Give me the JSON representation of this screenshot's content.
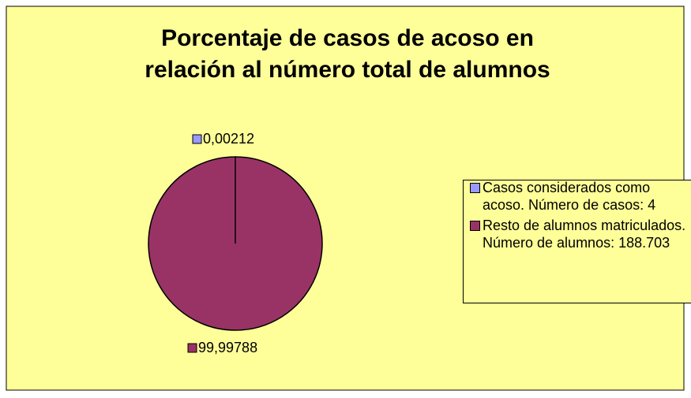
{
  "chart_data": {
    "type": "pie",
    "title": "Porcentaje de casos de acoso en relación al número total de alumnos",
    "categories": [
      "Casos considerados como acoso. Número de casos: 4",
      "Resto de alumnos matriculados. Número de alumnos: 188.703"
    ],
    "values": [
      0.00212,
      99.99788
    ],
    "value_labels": [
      "0,00212",
      "99,99788"
    ],
    "colors": [
      "#9999ff",
      "#993366"
    ],
    "legend": "right"
  }
}
